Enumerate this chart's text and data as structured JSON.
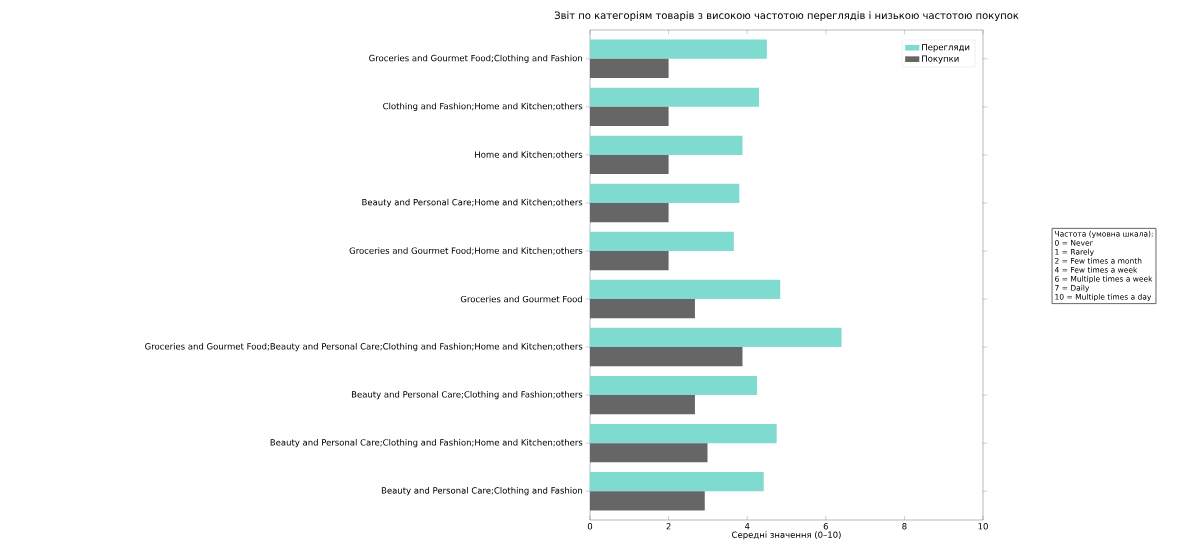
{
  "chart_data": {
    "type": "bar",
    "orientation": "horizontal",
    "title": "Звіт по категоріям товарів з високою частотою переглядів і низькою частотою покупок",
    "xlabel": "Середні значення (0–10)",
    "categories": [
      "Groceries and Gourmet Food;Clothing and Fashion",
      "Clothing and Fashion;Home and Kitchen;others",
      "Home and Kitchen;others",
      "Beauty and Personal Care;Home and Kitchen;others",
      "Groceries and Gourmet Food;Home and Kitchen;others",
      "Groceries and Gourmet Food",
      "Groceries and Gourmet Food;Beauty and Personal Care;Clothing and Fashion;Home and Kitchen;others",
      "Beauty and Personal Care;Clothing and Fashion;others",
      "Beauty and Personal Care;Clothing and Fashion;Home and Kitchen;others",
      "Beauty and Personal Care;Clothing and Fashion"
    ],
    "series": [
      {
        "name": "Перегляди",
        "color": "#7fdbd0",
        "values": [
          4.5,
          4.3,
          3.88,
          3.8,
          3.66,
          4.84,
          6.4,
          4.25,
          4.75,
          4.42
        ]
      },
      {
        "name": "Покупки",
        "color": "#666666",
        "values": [
          2.0,
          2.0,
          2.0,
          2.0,
          2.0,
          2.67,
          3.88,
          2.67,
          2.99,
          2.92
        ]
      }
    ],
    "xlim": [
      0,
      10
    ],
    "xticks": [
      0,
      2,
      4,
      6,
      8,
      10
    ],
    "legend": "top right",
    "annotations": [
      "Частота (умовна шкала):",
      "0 = Never",
      "1 = Rarely",
      "2 = Few times a month",
      "4 = Few times a week",
      "6 = Multiple times a week",
      "7 = Daily",
      "10 = Multiple times a day"
    ]
  }
}
